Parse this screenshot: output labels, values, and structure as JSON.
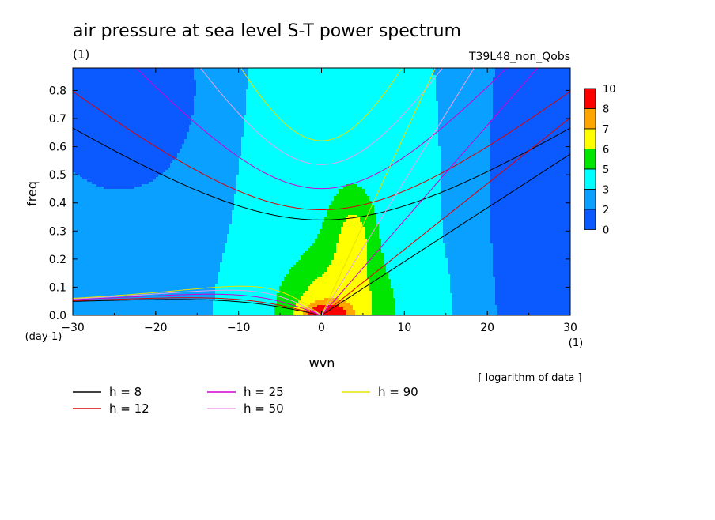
{
  "chart_data": {
    "type": "heatmap",
    "title": "air pressure at sea level S-T power spectrum",
    "unit_label": "(1)",
    "experiment": "T39L48_non_Qobs",
    "xlabel": "wvn",
    "x_unit": "(1)",
    "ylabel": "freq",
    "y_unit": "(day-1)",
    "xlim": [
      -30,
      30
    ],
    "ylim": [
      0,
      0.88
    ],
    "x_ticks": [
      "−30",
      "−20",
      "−10",
      "0",
      "10",
      "20",
      "30"
    ],
    "x_tick_values": [
      -30,
      -20,
      -10,
      0,
      10,
      20,
      30
    ],
    "y_ticks": [
      "0.0",
      "0.1",
      "0.2",
      "0.3",
      "0.4",
      "0.5",
      "0.6",
      "0.7",
      "0.8"
    ],
    "y_tick_values": [
      0,
      0.1,
      0.2,
      0.3,
      0.4,
      0.5,
      0.6,
      0.7,
      0.8
    ],
    "note": "[ logarithm of data ]",
    "colorbar": {
      "labels": [
        "10",
        "8",
        "7",
        "6",
        "5",
        "3",
        "2",
        "0"
      ],
      "colors": [
        "#ff0000",
        "#ffa500",
        "#ffff00",
        "#00e600",
        "#00ffff",
        "#0aa0ff",
        "#0a5aff"
      ]
    },
    "fill_levels": {
      "colors": [
        "#0a5aff",
        "#0aa0ff",
        "#00ffff",
        "#00e600",
        "#ffff00",
        "#ffa500",
        "#ff0000"
      ],
      "thresholds": [
        2,
        3,
        5,
        6,
        7,
        8
      ]
    },
    "dispersion_curves": [
      {
        "name": "h = 8",
        "h": 8,
        "color": "#000000"
      },
      {
        "name": "h = 12",
        "h": 12,
        "color": "#e00000"
      },
      {
        "name": "h = 25",
        "h": 25,
        "color": "#d000d0"
      },
      {
        "name": "h = 50",
        "h": 50,
        "color": "#e8a0e8"
      },
      {
        "name": "h = 90",
        "h": 90,
        "color": "#e8e000"
      }
    ]
  }
}
